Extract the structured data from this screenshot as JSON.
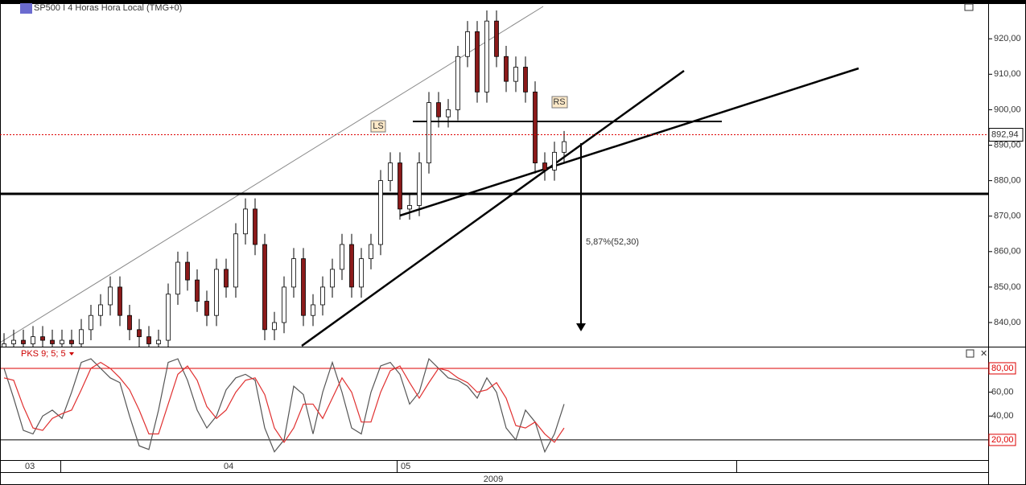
{
  "chart_data": [
    {
      "type": "candlestick",
      "title": "SP500 I 4 Horas Hora Local (TMG+0)",
      "open": [
        833,
        834,
        835,
        834,
        836,
        835,
        834,
        835,
        834,
        838,
        842,
        845,
        850,
        842,
        838,
        836,
        834,
        835,
        848,
        857,
        852,
        846,
        842,
        855,
        850,
        865,
        872,
        862,
        838,
        840,
        850,
        858,
        842,
        845,
        850,
        855,
        862,
        850,
        858,
        862,
        880,
        885,
        872,
        873,
        885,
        902,
        898,
        900,
        915,
        922,
        905,
        925,
        915,
        908,
        912,
        905,
        885,
        883,
        888
      ],
      "high": [
        837,
        838,
        838,
        839,
        839,
        838,
        838,
        838,
        841,
        845,
        848,
        853,
        853,
        845,
        841,
        839,
        838,
        851,
        860,
        860,
        855,
        849,
        858,
        858,
        868,
        875,
        875,
        865,
        843,
        853,
        861,
        861,
        848,
        853,
        858,
        865,
        865,
        861,
        865,
        883,
        888,
        888,
        876,
        888,
        905,
        905,
        903,
        918,
        925,
        925,
        928,
        928,
        918,
        915,
        915,
        908,
        888,
        891,
        894
      ],
      "low": [
        830,
        831,
        831,
        831,
        832,
        831,
        831,
        831,
        831,
        835,
        839,
        842,
        839,
        835,
        833,
        831,
        831,
        832,
        845,
        849,
        843,
        839,
        839,
        847,
        847,
        862,
        859,
        835,
        835,
        837,
        847,
        839,
        839,
        842,
        847,
        852,
        847,
        847,
        855,
        859,
        877,
        869,
        869,
        870,
        882,
        895,
        895,
        897,
        912,
        902,
        902,
        912,
        905,
        905,
        902,
        882,
        880,
        880,
        885
      ],
      "close": [
        834,
        835,
        834,
        836,
        835,
        834,
        835,
        834,
        838,
        842,
        845,
        850,
        842,
        838,
        836,
        834,
        835,
        848,
        857,
        852,
        846,
        842,
        855,
        850,
        865,
        872,
        862,
        838,
        840,
        850,
        858,
        842,
        845,
        850,
        855,
        862,
        850,
        858,
        862,
        880,
        885,
        872,
        873,
        885,
        902,
        898,
        900,
        915,
        922,
        905,
        925,
        915,
        908,
        912,
        905,
        885,
        883,
        888,
        891
      ],
      "up_color": "#ffffff",
      "down_color": "#8b1a1a",
      "ylim": [
        833.2,
        929.8
      ],
      "yticks": [
        {
          "value": 840,
          "label": "840,00"
        },
        {
          "value": 850,
          "label": "850,00"
        },
        {
          "value": 860,
          "label": "860,00"
        },
        {
          "value": 870,
          "label": "870,00"
        },
        {
          "value": 880,
          "label": "880,00"
        },
        {
          "value": 890,
          "label": "890,00"
        },
        {
          "value": 900,
          "label": "900,00"
        },
        {
          "value": 910,
          "label": "910,00"
        },
        {
          "value": 920,
          "label": "920,00"
        }
      ],
      "last_price": {
        "value": 892.94,
        "label": "892,94"
      },
      "annotations": [
        "LS",
        "RS",
        "5,87%(52,30)"
      ]
    },
    {
      "type": "line",
      "title": "PKS 9; 5; 5",
      "series": [
        {
          "color": "#555555",
          "values": [
            80,
            55,
            28,
            25,
            40,
            45,
            38,
            60,
            85,
            88,
            80,
            72,
            68,
            40,
            15,
            12,
            45,
            85,
            88,
            70,
            45,
            30,
            40,
            62,
            72,
            75,
            70,
            30,
            10,
            20,
            65,
            58,
            25,
            60,
            85,
            60,
            30,
            25,
            60,
            82,
            85,
            75,
            50,
            60,
            88,
            80,
            72,
            70,
            65,
            55,
            72,
            60,
            30,
            20,
            45,
            35,
            10,
            25,
            50
          ]
        },
        {
          "color": "#e03030",
          "values": [
            72,
            70,
            48,
            30,
            28,
            38,
            42,
            45,
            62,
            80,
            85,
            80,
            72,
            62,
            45,
            25,
            25,
            50,
            75,
            82,
            70,
            48,
            38,
            45,
            60,
            70,
            72,
            58,
            30,
            18,
            30,
            50,
            50,
            38,
            55,
            72,
            60,
            35,
            35,
            60,
            78,
            82,
            68,
            55,
            68,
            80,
            78,
            72,
            68,
            60,
            62,
            68,
            55,
            32,
            30,
            35,
            25,
            18,
            30
          ]
        }
      ],
      "ylim": [
        3.1,
        97.5
      ],
      "yticks": [
        {
          "value": 20,
          "label": "20,00"
        },
        {
          "value": 40,
          "label": "40,00"
        },
        {
          "value": 60,
          "label": "60,00"
        },
        {
          "value": 80,
          "label": "80,00"
        }
      ]
    }
  ],
  "x_axis": {
    "labels": [
      "03",
      "04",
      "05"
    ],
    "year": "2009"
  }
}
